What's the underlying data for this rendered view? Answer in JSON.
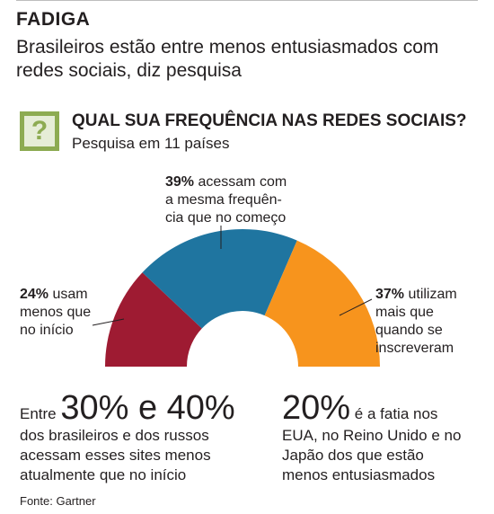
{
  "header": {
    "title": "FADIGA",
    "subtitle": "Brasileiros estão entre menos entusiasmados com redes sociais, diz pesquisa"
  },
  "question": {
    "icon": "question-mark-icon",
    "icon_glyph": "?",
    "title": "QUAL SUA FREQUÊNCIA NAS REDES SOCIAIS?",
    "subtitle": "Pesquisa em 11 países"
  },
  "colors": {
    "red": "#9e1b32",
    "blue": "#1f75a0",
    "orange": "#f7941d",
    "icon_green": "#8dab52"
  },
  "chart_data": {
    "type": "pie",
    "subtype": "half-donut",
    "slices": [
      {
        "value": 24,
        "pct_text": "24%",
        "text": "usam menos que no início",
        "color": "#9e1b32"
      },
      {
        "value": 39,
        "pct_text": "39%",
        "text": "acessam com a mesma frequência que no começo",
        "color": "#1f75a0"
      },
      {
        "value": 37,
        "pct_text": "37%",
        "text": "utilizam mais que quando se inscreveram",
        "color": "#f7941d"
      }
    ]
  },
  "labels": {
    "left": {
      "pct": "24%",
      "line1": " usam",
      "line2": "menos que",
      "line3": "no início"
    },
    "top": {
      "pct": "39%",
      "line1": " acessam com",
      "line2": "a mesma frequên-",
      "line3": "cia",
      "line4": "que no começo"
    },
    "right": {
      "pct": "37%",
      "line1": " utilizam",
      "line2": "mais que",
      "line3": "quando se",
      "line4": "inscreveram"
    }
  },
  "stats": {
    "left": {
      "pre": "Entre ",
      "big": "30% e 40%",
      "line2": "dos brasileiros e dos russos",
      "line3": "acessam esses sites menos",
      "line4": "atualmente que no início"
    },
    "right": {
      "big": "20%",
      "post": " é a fatia nos",
      "line2": "EUA, no Reino Unido e no",
      "line3": "Japão dos que estão",
      "line4": "menos entusiasmados"
    }
  },
  "source": "Fonte: Gartner"
}
